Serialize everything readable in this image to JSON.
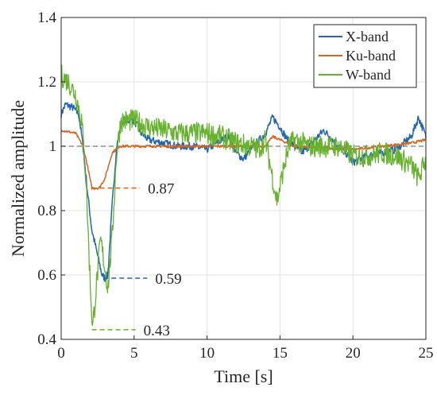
{
  "chart_data": {
    "type": "line",
    "title": "",
    "xlabel": "Time [s]",
    "ylabel": "Normalized amplitude",
    "xlim": [
      0,
      25
    ],
    "ylim": [
      0.4,
      1.4
    ],
    "xticks": [
      0,
      5,
      10,
      15,
      20,
      25
    ],
    "yticks": [
      0.4,
      0.6,
      0.8,
      1,
      1.2,
      1.4
    ],
    "xtick_labels": [
      "0",
      "5",
      "10",
      "15",
      "20",
      "25"
    ],
    "ytick_labels": [
      "0.4",
      "0.6",
      "0.8",
      "1",
      "1.2",
      "1.4"
    ],
    "grid": true,
    "legend_position": "top-right",
    "reference_line": {
      "y": 1.0,
      "color": "#7a7a7a",
      "style": "dashed"
    },
    "series": [
      {
        "name": "X-band",
        "color": "#2166b0",
        "noise": 0.012,
        "points": [
          [
            0,
            1.1
          ],
          [
            0.3,
            1.13
          ],
          [
            0.8,
            1.12
          ],
          [
            1.2,
            1.1
          ],
          [
            1.5,
            1.0
          ],
          [
            1.8,
            0.86
          ],
          [
            2.1,
            0.74
          ],
          [
            2.5,
            0.66
          ],
          [
            2.8,
            0.6
          ],
          [
            3.0,
            0.59
          ],
          [
            3.2,
            0.6
          ],
          [
            3.5,
            0.82
          ],
          [
            3.8,
            1.0
          ],
          [
            4.2,
            1.08
          ],
          [
            5,
            1.08
          ],
          [
            5.5,
            1.04
          ],
          [
            6,
            1.02
          ],
          [
            7,
            1.01
          ],
          [
            8,
            1.0
          ],
          [
            9,
            1.0
          ],
          [
            10,
            0.99
          ],
          [
            11,
            1.02
          ],
          [
            11.5,
            1.03
          ],
          [
            12,
            0.98
          ],
          [
            12.5,
            0.96
          ],
          [
            13,
            0.99
          ],
          [
            14,
            1.04
          ],
          [
            14.5,
            1.09
          ],
          [
            15,
            1.06
          ],
          [
            15.5,
            1.02
          ],
          [
            16,
            1.0
          ],
          [
            16.5,
            0.98
          ],
          [
            17,
            1.0
          ],
          [
            18,
            1.05
          ],
          [
            19,
            1.0
          ],
          [
            19.5,
            0.98
          ],
          [
            20,
            0.95
          ],
          [
            21,
            0.97
          ],
          [
            22,
            0.98
          ],
          [
            23,
            0.99
          ],
          [
            24,
            1.03
          ],
          [
            24.5,
            1.09
          ],
          [
            25,
            1.03
          ]
        ]
      },
      {
        "name": "Ku-band",
        "color": "#d9631f",
        "noise": 0.004,
        "points": [
          [
            0,
            1.05
          ],
          [
            1.0,
            1.04
          ],
          [
            1.5,
            1.0
          ],
          [
            1.8,
            0.94
          ],
          [
            2.1,
            0.87
          ],
          [
            2.6,
            0.87
          ],
          [
            3.0,
            0.9
          ],
          [
            3.5,
            0.98
          ],
          [
            4,
            1.0
          ],
          [
            6,
            1.0
          ],
          [
            10,
            1.0
          ],
          [
            14,
            1.0
          ],
          [
            14.5,
            1.03
          ],
          [
            15,
            1.02
          ],
          [
            16,
            1.0
          ],
          [
            20,
            0.99
          ],
          [
            24,
            1.01
          ],
          [
            25,
            1.02
          ]
        ]
      },
      {
        "name": "W-band",
        "color": "#66b22e",
        "noise": 0.035,
        "points": [
          [
            0,
            1.22
          ],
          [
            0.5,
            1.2
          ],
          [
            1.0,
            1.16
          ],
          [
            1.4,
            1.08
          ],
          [
            1.7,
            0.9
          ],
          [
            1.95,
            0.62
          ],
          [
            2.15,
            0.43
          ],
          [
            2.4,
            0.56
          ],
          [
            2.7,
            0.71
          ],
          [
            3.0,
            0.62
          ],
          [
            3.2,
            0.56
          ],
          [
            3.5,
            0.72
          ],
          [
            3.8,
            0.98
          ],
          [
            4.1,
            1.08
          ],
          [
            5,
            1.08
          ],
          [
            6,
            1.06
          ],
          [
            7,
            1.05
          ],
          [
            8,
            1.04
          ],
          [
            9,
            1.04
          ],
          [
            10,
            1.04
          ],
          [
            11,
            1.03
          ],
          [
            12,
            1.01
          ],
          [
            13,
            1.0
          ],
          [
            13.5,
            0.99
          ],
          [
            14,
            1.02
          ],
          [
            14.5,
            0.9
          ],
          [
            14.8,
            0.83
          ],
          [
            15.2,
            0.92
          ],
          [
            15.6,
            1.0
          ],
          [
            16,
            1.02
          ],
          [
            17,
            1.0
          ],
          [
            18,
            1.0
          ],
          [
            19,
            1.0
          ],
          [
            20,
            0.97
          ],
          [
            21,
            0.97
          ],
          [
            22,
            0.98
          ],
          [
            23,
            0.97
          ],
          [
            24,
            0.94
          ],
          [
            24.5,
            0.9
          ],
          [
            25,
            0.96
          ]
        ]
      }
    ],
    "annotations": [
      {
        "text": "0.87",
        "y": 0.87,
        "x_start": 2.1,
        "x_end": 5.4,
        "color": "#d9631f"
      },
      {
        "text": "0.59",
        "y": 0.59,
        "x_start": 2.9,
        "x_end": 5.9,
        "color": "#2166b0"
      },
      {
        "text": "0.43",
        "y": 0.43,
        "x_start": 2.1,
        "x_end": 5.1,
        "color": "#66b22e"
      }
    ]
  }
}
